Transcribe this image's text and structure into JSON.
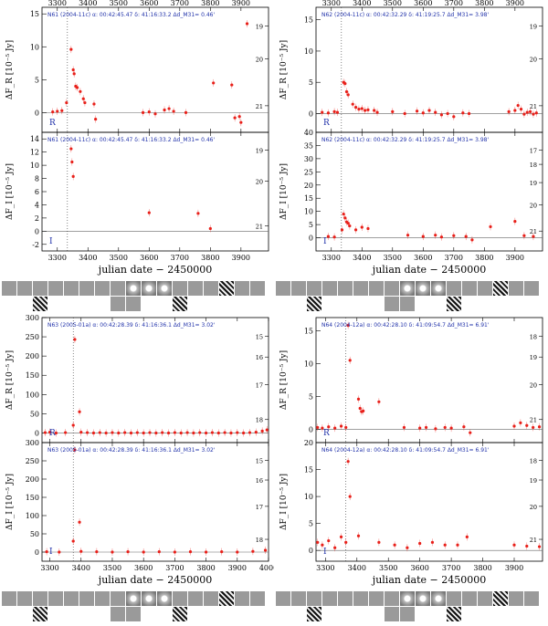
{
  "figure": {
    "xlabel": "julian date − 2450000",
    "accent": "#e8201a",
    "label_color": "#2233aa"
  },
  "chart_data": [
    {
      "id": "N61",
      "type": "scatter",
      "band_label": "R",
      "header": "N61 (2004-11c)   α: 00:42:45.47  δ: 41:16:33.2   Δd_M31= 0.46'",
      "xlim": [
        3250,
        3990
      ],
      "ylim": [
        -3,
        16
      ],
      "xticks": [
        3300,
        3400,
        3500,
        3600,
        3700,
        3800,
        3900
      ],
      "yticks": [
        0,
        5,
        10,
        15
      ],
      "ylabel": "ΔF_R [10⁻⁵ Jy]",
      "mag_ticks": [
        19,
        20,
        21
      ],
      "outburst_x": 3333,
      "points": [
        [
          3285,
          0.1
        ],
        [
          3300,
          0.2
        ],
        [
          3315,
          0.3
        ],
        [
          3330,
          1.5
        ],
        [
          3345,
          9.6
        ],
        [
          3352,
          6.5
        ],
        [
          3355,
          5.9
        ],
        [
          3360,
          4.0
        ],
        [
          3365,
          3.8
        ],
        [
          3375,
          3.2
        ],
        [
          3385,
          2.1
        ],
        [
          3390,
          1.5
        ],
        [
          3420,
          1.3
        ],
        [
          3425,
          -1.0
        ],
        [
          3580,
          0.0
        ],
        [
          3600,
          0.1
        ],
        [
          3620,
          -0.2
        ],
        [
          3650,
          0.4
        ],
        [
          3665,
          0.6
        ],
        [
          3680,
          0.2
        ],
        [
          3720,
          0.0
        ],
        [
          3810,
          4.5
        ],
        [
          3870,
          4.2
        ],
        [
          3880,
          -0.8
        ],
        [
          3895,
          -0.6
        ],
        [
          3900,
          -1.5
        ],
        [
          3920,
          13.5
        ]
      ]
    },
    {
      "id": "N61",
      "type": "scatter",
      "band_label": "I",
      "header": "N61 (2004-11c)   α: 00:42:45.47  δ: 41:16:33.2   Δd_M31= 0.46'",
      "xlim": [
        3250,
        3990
      ],
      "ylim": [
        -3,
        15
      ],
      "xticks": [
        3300,
        3400,
        3500,
        3600,
        3700,
        3800,
        3900
      ],
      "yticks": [
        -2,
        0,
        2,
        4,
        6,
        8,
        10,
        12,
        14
      ],
      "ylabel": "ΔF_I [10⁻⁵ Jy]",
      "mag_ticks": [
        19,
        20,
        21
      ],
      "outburst_x": 3333,
      "points": [
        [
          3345,
          12.5
        ],
        [
          3348,
          10.5
        ],
        [
          3352,
          8.3
        ],
        [
          3600,
          2.8
        ],
        [
          3760,
          2.7
        ],
        [
          3800,
          0.4
        ]
      ]
    },
    {
      "id": "N62",
      "type": "scatter",
      "band_label": "R",
      "header": "N62 (2004-11c)   α: 00:42:32.29  δ: 41:19:25.7   Δd_M31= 3.98'",
      "xlim": [
        3250,
        3990
      ],
      "ylim": [
        -3,
        17
      ],
      "xticks": [
        3300,
        3400,
        3500,
        3600,
        3700,
        3800,
        3900
      ],
      "yticks": [
        0,
        5,
        10,
        15
      ],
      "ylabel": "ΔF_R [10⁻⁵ Jy]",
      "mag_ticks": [
        19,
        20,
        21
      ],
      "outburst_x": 3333,
      "points": [
        [
          3270,
          0.2
        ],
        [
          3290,
          0.1
        ],
        [
          3310,
          0.3
        ],
        [
          3320,
          0.2
        ],
        [
          3340,
          5.0
        ],
        [
          3345,
          4.8
        ],
        [
          3350,
          3.5
        ],
        [
          3355,
          3.0
        ],
        [
          3370,
          1.5
        ],
        [
          3380,
          1.0
        ],
        [
          3390,
          0.7
        ],
        [
          3400,
          0.8
        ],
        [
          3410,
          0.5
        ],
        [
          3420,
          0.6
        ],
        [
          3440,
          0.5
        ],
        [
          3450,
          0.2
        ],
        [
          3500,
          0.3
        ],
        [
          3540,
          0.0
        ],
        [
          3580,
          0.4
        ],
        [
          3600,
          0.1
        ],
        [
          3620,
          0.5
        ],
        [
          3640,
          0.2
        ],
        [
          3660,
          -0.2
        ],
        [
          3680,
          0.0
        ],
        [
          3700,
          -0.5
        ],
        [
          3730,
          0.1
        ],
        [
          3750,
          0.0
        ],
        [
          3880,
          0.3
        ],
        [
          3900,
          0.5
        ],
        [
          3910,
          1.3
        ],
        [
          3920,
          0.7
        ],
        [
          3930,
          -0.1
        ],
        [
          3940,
          0.2
        ],
        [
          3950,
          0.3
        ],
        [
          3960,
          -0.1
        ],
        [
          3970,
          0.1
        ]
      ]
    },
    {
      "id": "N62",
      "type": "scatter",
      "band_label": "I",
      "header": "N62 (2004-11c)   α: 00:42:32.29  δ: 41:19:25.7   Δd_M31= 3.98'",
      "xlim": [
        3250,
        3990
      ],
      "ylim": [
        -5,
        40
      ],
      "xticks": [
        3300,
        3400,
        3500,
        3600,
        3700,
        3800,
        3900
      ],
      "yticks": [
        0,
        5,
        10,
        15,
        20,
        25,
        30,
        35,
        40
      ],
      "ylabel": "ΔF_I [10⁻⁵ Jy]",
      "mag_ticks": [
        17,
        18,
        19,
        20,
        21
      ],
      "outburst_x": 3333,
      "points": [
        [
          3290,
          0.5
        ],
        [
          3310,
          0.3
        ],
        [
          3335,
          3.0
        ],
        [
          3340,
          9.0
        ],
        [
          3345,
          7.5
        ],
        [
          3350,
          6.0
        ],
        [
          3355,
          5.5
        ],
        [
          3360,
          4.5
        ],
        [
          3380,
          3.0
        ],
        [
          3400,
          4.0
        ],
        [
          3420,
          3.5
        ],
        [
          3550,
          1.0
        ],
        [
          3600,
          0.5
        ],
        [
          3640,
          1.0
        ],
        [
          3660,
          0.3
        ],
        [
          3700,
          0.8
        ],
        [
          3740,
          0.5
        ],
        [
          3760,
          -0.8
        ],
        [
          3820,
          4.2
        ],
        [
          3900,
          6.2
        ],
        [
          3930,
          0.8
        ],
        [
          3960,
          0.5
        ]
      ]
    },
    {
      "id": "N63",
      "type": "scatter",
      "band_label": "R",
      "header": "N63 (2005-01a)   α: 00:42:28.39  δ: 41:16:36.1   Δd_M31= 3.02'",
      "xlim": [
        3275,
        4000
      ],
      "ylim": [
        -25,
        300
      ],
      "xticks": [
        3300,
        3400,
        3500,
        3600,
        3700,
        3800,
        3900,
        4000
      ],
      "yticks": [
        0,
        50,
        100,
        150,
        200,
        250,
        300
      ],
      "ylabel": "ΔF_R [10⁻⁵ Jy]",
      "mag_ticks": [
        15,
        16,
        17,
        18
      ],
      "outburst_x": 3375,
      "points": [
        [
          3285,
          1
        ],
        [
          3300,
          2
        ],
        [
          3320,
          0
        ],
        [
          3350,
          1
        ],
        [
          3375,
          20
        ],
        [
          3380,
          243
        ],
        [
          3395,
          55
        ],
        [
          3400,
          2
        ],
        [
          3420,
          1
        ],
        [
          3440,
          0
        ],
        [
          3460,
          1
        ],
        [
          3480,
          0
        ],
        [
          3500,
          1
        ],
        [
          3520,
          0
        ],
        [
          3540,
          1
        ],
        [
          3560,
          0
        ],
        [
          3580,
          1
        ],
        [
          3600,
          0
        ],
        [
          3620,
          1
        ],
        [
          3640,
          0
        ],
        [
          3660,
          1
        ],
        [
          3680,
          0
        ],
        [
          3700,
          1
        ],
        [
          3720,
          0
        ],
        [
          3740,
          1
        ],
        [
          3760,
          0
        ],
        [
          3780,
          1
        ],
        [
          3800,
          0
        ],
        [
          3820,
          1
        ],
        [
          3840,
          0
        ],
        [
          3860,
          1
        ],
        [
          3880,
          0
        ],
        [
          3900,
          1
        ],
        [
          3920,
          0
        ],
        [
          3940,
          1
        ],
        [
          3960,
          2
        ],
        [
          3980,
          5
        ],
        [
          3995,
          8
        ]
      ]
    },
    {
      "id": "N63",
      "type": "scatter",
      "band_label": "I",
      "header": "N63 (2005-01a)   α: 00:42:28.39  δ: 41:16:36.1   Δd_M31= 3.02'",
      "xlim": [
        3275,
        4000
      ],
      "ylim": [
        -25,
        300
      ],
      "xticks": [
        3300,
        3400,
        3500,
        3600,
        3700,
        3800,
        3900,
        4000
      ],
      "yticks": [
        0,
        50,
        100,
        150,
        200,
        250,
        300
      ],
      "ylabel": "ΔF_I [10⁻⁵ Jy]",
      "mag_ticks": [
        15,
        16,
        17,
        18
      ],
      "outburst_x": 3375,
      "points": [
        [
          3290,
          1
        ],
        [
          3330,
          0
        ],
        [
          3375,
          30
        ],
        [
          3380,
          280
        ],
        [
          3395,
          82
        ],
        [
          3400,
          2
        ],
        [
          3450,
          1
        ],
        [
          3500,
          0
        ],
        [
          3550,
          1
        ],
        [
          3600,
          0
        ],
        [
          3650,
          1
        ],
        [
          3700,
          0
        ],
        [
          3750,
          1
        ],
        [
          3800,
          0
        ],
        [
          3850,
          1
        ],
        [
          3900,
          0
        ],
        [
          3950,
          2
        ],
        [
          3990,
          5
        ]
      ]
    },
    {
      "id": "N64",
      "type": "scatter",
      "band_label": "R",
      "header": "N64 (2004-12a)   α: 00:42:28.10  δ: 41:09:54.7   Δd_M31= 6.91'",
      "xlim": [
        3270,
        3990
      ],
      "ylim": [
        -2,
        17
      ],
      "xticks": [
        3300,
        3400,
        3500,
        3600,
        3700,
        3800,
        3900
      ],
      "yticks": [
        0,
        5,
        10,
        15
      ],
      "ylabel": "ΔF_R [10⁻⁵ Jy]",
      "mag_ticks": [
        18,
        19,
        20,
        21
      ],
      "outburst_x": 3365,
      "points": [
        [
          3275,
          0.3
        ],
        [
          3290,
          0.2
        ],
        [
          3310,
          0.4
        ],
        [
          3330,
          0.2
        ],
        [
          3350,
          0.5
        ],
        [
          3365,
          0.3
        ],
        [
          3372,
          15.8
        ],
        [
          3378,
          10.5
        ],
        [
          3405,
          4.6
        ],
        [
          3410,
          3.2
        ],
        [
          3415,
          2.7
        ],
        [
          3420,
          2.8
        ],
        [
          3470,
          4.2
        ],
        [
          3550,
          0.3
        ],
        [
          3600,
          0.2
        ],
        [
          3620,
          0.3
        ],
        [
          3650,
          0.1
        ],
        [
          3680,
          0.3
        ],
        [
          3700,
          0.2
        ],
        [
          3740,
          0.4
        ],
        [
          3760,
          -0.5
        ],
        [
          3900,
          0.5
        ],
        [
          3920,
          1.0
        ],
        [
          3940,
          0.6
        ],
        [
          3960,
          0.3
        ],
        [
          3980,
          0.4
        ]
      ]
    },
    {
      "id": "N64",
      "type": "scatter",
      "band_label": "I",
      "header": "N64 (2004-12a)   α: 00:42:28.10  δ: 41:09:54.7   Δd_M31= 6.91'",
      "xlim": [
        3270,
        3990
      ],
      "ylim": [
        -2,
        20
      ],
      "xticks": [
        3300,
        3400,
        3500,
        3600,
        3700,
        3800,
        3900
      ],
      "yticks": [
        0,
        5,
        10,
        15,
        20
      ],
      "ylabel": "ΔF_I [10⁻⁵ Jy]",
      "mag_ticks": [
        18,
        19,
        20,
        21
      ],
      "outburst_x": 3365,
      "points": [
        [
          3275,
          1.5
        ],
        [
          3290,
          1.0
        ],
        [
          3310,
          1.8
        ],
        [
          3330,
          0.5
        ],
        [
          3350,
          2.5
        ],
        [
          3365,
          1.5
        ],
        [
          3372,
          16.5
        ],
        [
          3378,
          10.0
        ],
        [
          3405,
          2.7
        ],
        [
          3470,
          1.5
        ],
        [
          3520,
          1.0
        ],
        [
          3560,
          0.5
        ],
        [
          3600,
          1.3
        ],
        [
          3640,
          1.5
        ],
        [
          3680,
          1.0
        ],
        [
          3720,
          1.0
        ],
        [
          3750,
          2.5
        ],
        [
          3900,
          1.0
        ],
        [
          3940,
          0.8
        ],
        [
          3980,
          0.7
        ]
      ]
    }
  ]
}
